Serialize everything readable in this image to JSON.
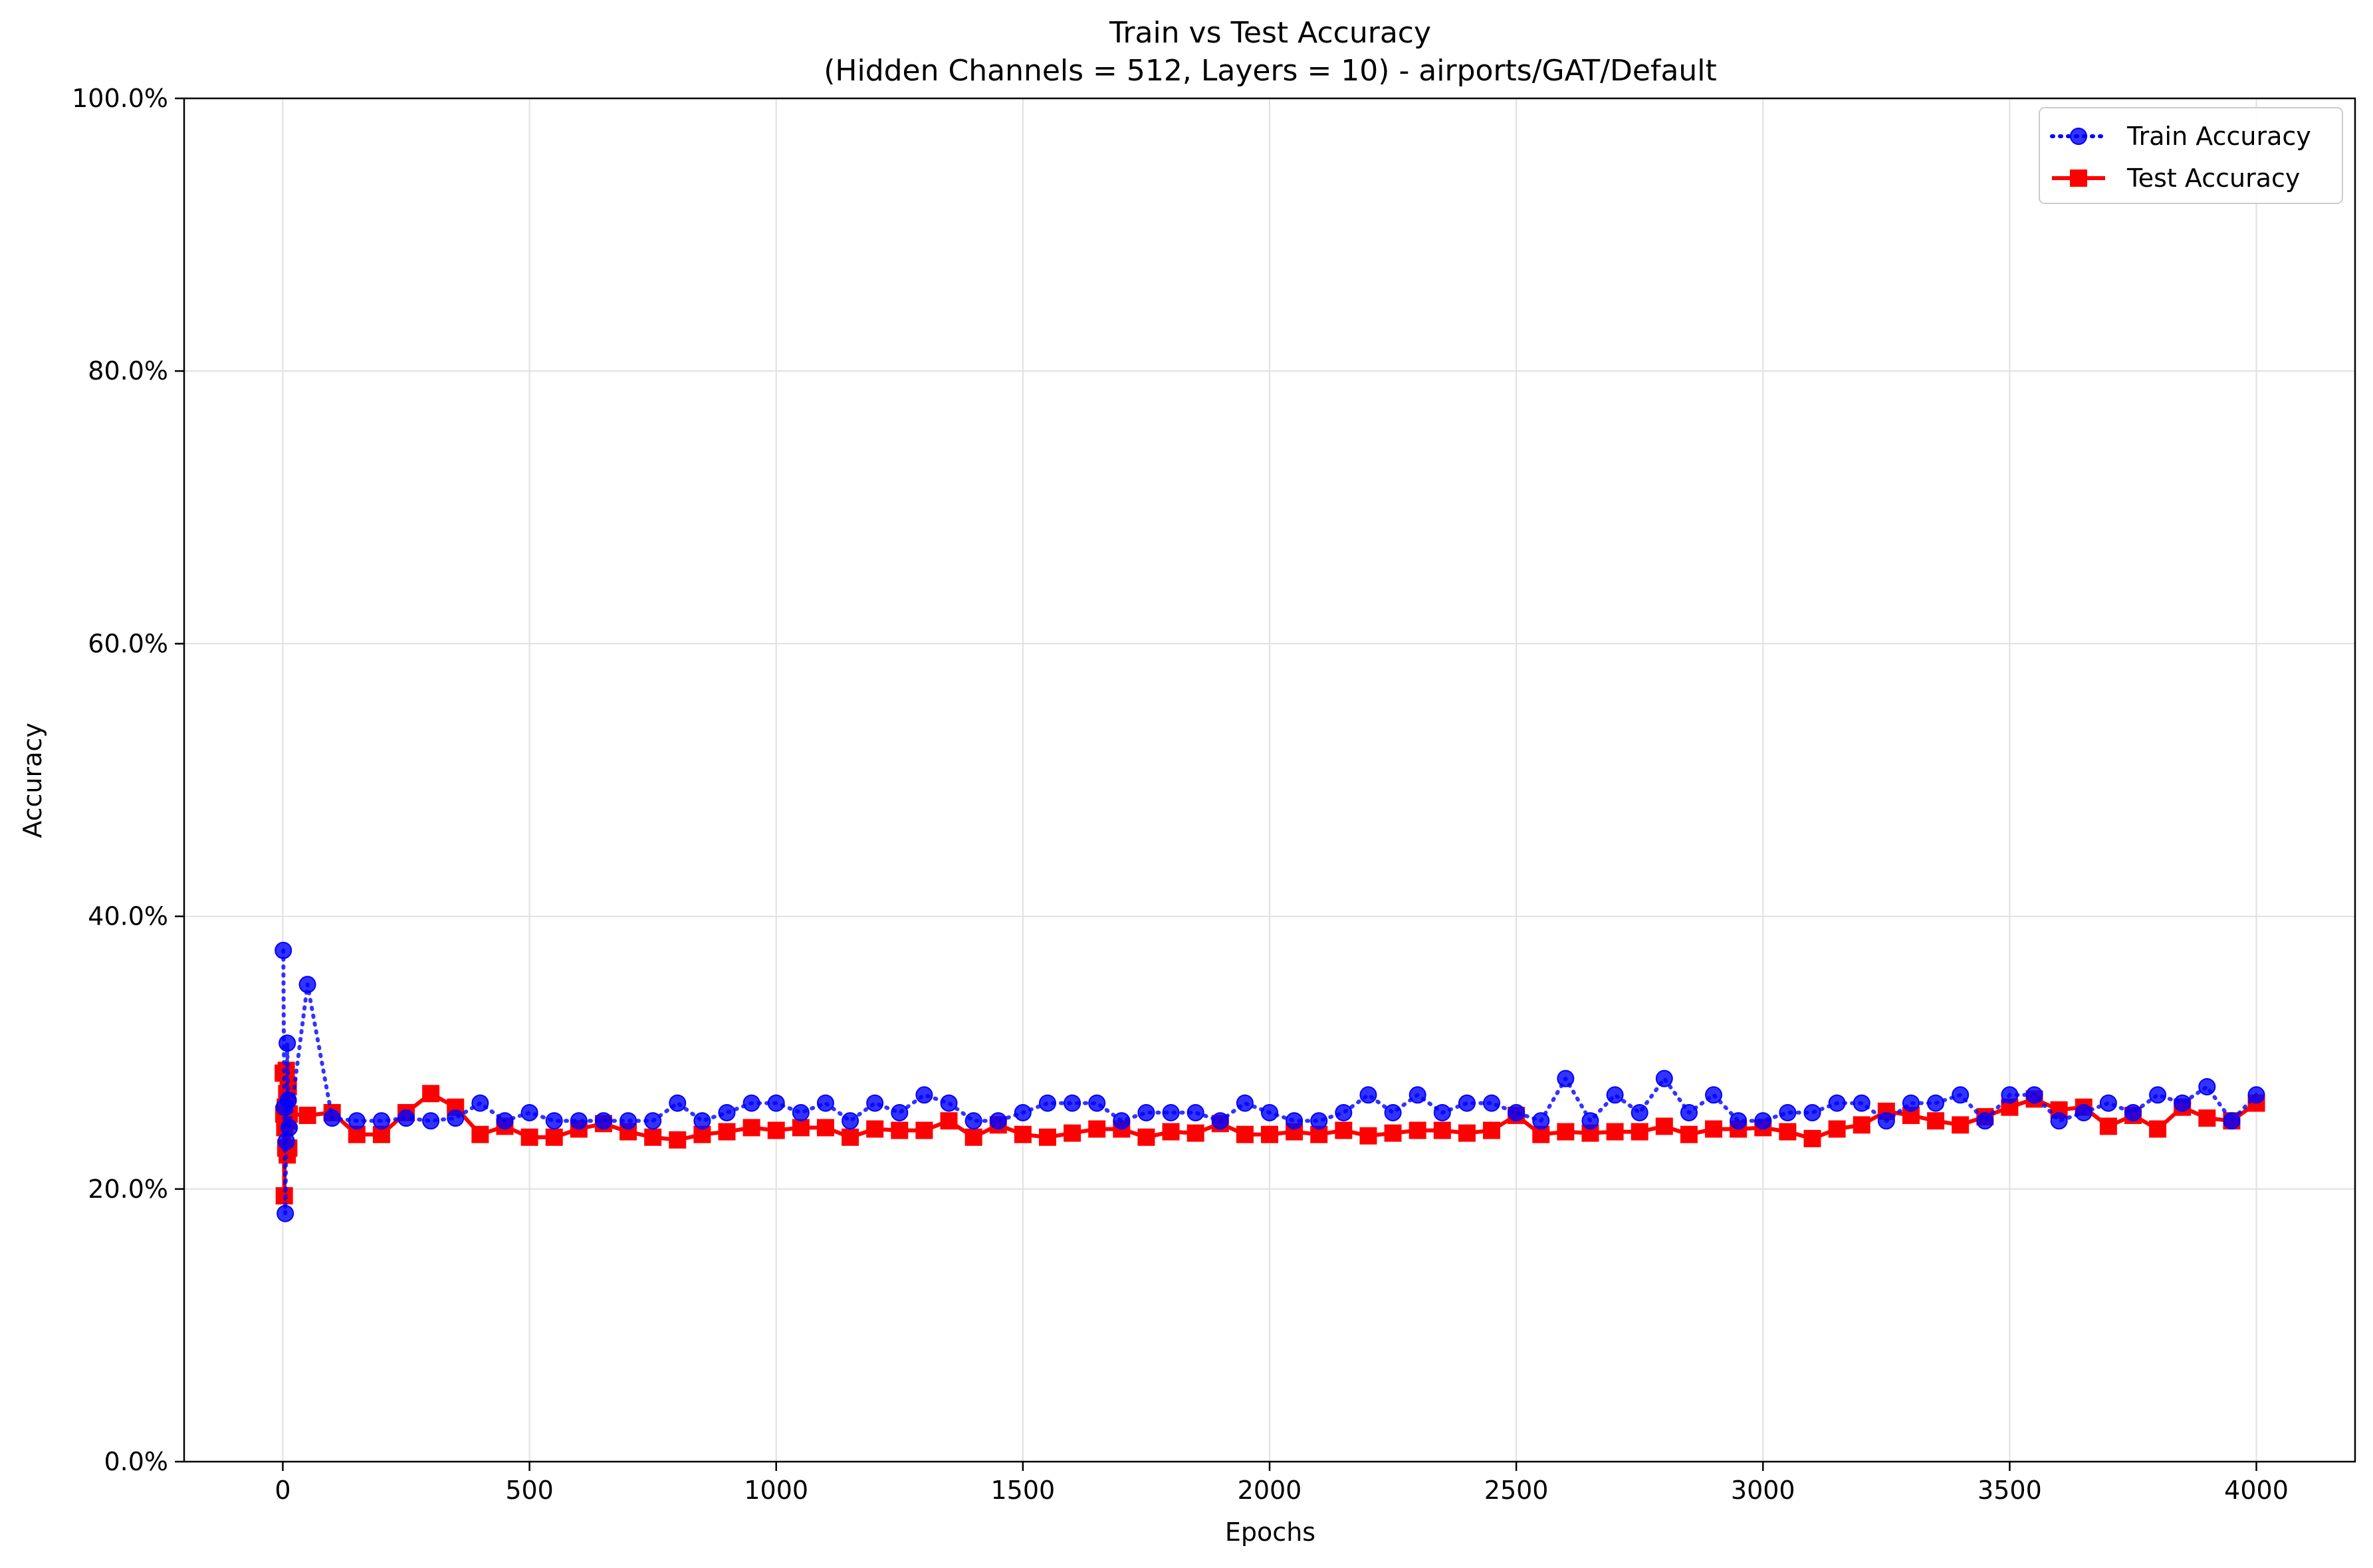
{
  "chart_data": {
    "type": "line",
    "title": "Train vs Test Accuracy",
    "subtitle": "(Hidden Channels = 512, Layers = 10) - airports/GAT/Default",
    "xlabel": "Epochs",
    "ylabel": "Accuracy",
    "xlim": [
      -200,
      4200
    ],
    "ylim": [
      0,
      100
    ],
    "x_ticks": [
      0,
      500,
      1000,
      1500,
      2000,
      2500,
      3000,
      3500,
      4000
    ],
    "y_ticks": [
      0,
      20,
      40,
      60,
      80,
      100
    ],
    "x_tick_labels": [
      "0",
      "500",
      "1000",
      "1500",
      "2000",
      "2500",
      "3000",
      "3500",
      "4000"
    ],
    "y_tick_labels": [
      "0.0%",
      "20.0%",
      "40.0%",
      "60.0%",
      "80.0%",
      "100.0%"
    ],
    "grid": true,
    "legend_position": "top-right",
    "series": [
      {
        "name": "Train Accuracy",
        "color": "#0000ff",
        "line_style": "dotted",
        "marker": "circle",
        "points": [
          [
            1,
            37.5
          ],
          [
            3,
            26.0
          ],
          [
            5,
            18.2
          ],
          [
            7,
            23.5
          ],
          [
            9,
            30.7
          ],
          [
            11,
            26.5
          ],
          [
            13,
            24.5
          ],
          [
            50,
            35.0
          ],
          [
            100,
            25.2
          ],
          [
            150,
            25.0
          ],
          [
            200,
            25.0
          ],
          [
            250,
            25.2
          ],
          [
            300,
            25.0
          ],
          [
            350,
            25.2
          ],
          [
            400,
            26.3
          ],
          [
            450,
            25.0
          ],
          [
            500,
            25.6
          ],
          [
            550,
            25.0
          ],
          [
            600,
            25.0
          ],
          [
            650,
            25.0
          ],
          [
            700,
            25.0
          ],
          [
            750,
            25.0
          ],
          [
            800,
            26.3
          ],
          [
            850,
            25.0
          ],
          [
            900,
            25.6
          ],
          [
            950,
            26.3
          ],
          [
            1000,
            26.3
          ],
          [
            1050,
            25.6
          ],
          [
            1100,
            26.3
          ],
          [
            1150,
            25.0
          ],
          [
            1200,
            26.3
          ],
          [
            1250,
            25.6
          ],
          [
            1300,
            26.9
          ],
          [
            1350,
            26.3
          ],
          [
            1400,
            25.0
          ],
          [
            1450,
            25.0
          ],
          [
            1500,
            25.6
          ],
          [
            1550,
            26.3
          ],
          [
            1600,
            26.3
          ],
          [
            1650,
            26.3
          ],
          [
            1700,
            25.0
          ],
          [
            1750,
            25.6
          ],
          [
            1800,
            25.6
          ],
          [
            1850,
            25.6
          ],
          [
            1900,
            25.0
          ],
          [
            1950,
            26.3
          ],
          [
            2000,
            25.6
          ],
          [
            2050,
            25.0
          ],
          [
            2100,
            25.0
          ],
          [
            2150,
            25.6
          ],
          [
            2200,
            26.9
          ],
          [
            2250,
            25.6
          ],
          [
            2300,
            26.9
          ],
          [
            2350,
            25.6
          ],
          [
            2400,
            26.3
          ],
          [
            2450,
            26.3
          ],
          [
            2500,
            25.6
          ],
          [
            2550,
            25.0
          ],
          [
            2600,
            28.1
          ],
          [
            2650,
            25.0
          ],
          [
            2700,
            26.9
          ],
          [
            2750,
            25.6
          ],
          [
            2800,
            28.1
          ],
          [
            2850,
            25.6
          ],
          [
            2900,
            26.9
          ],
          [
            2950,
            25.0
          ],
          [
            3000,
            25.0
          ],
          [
            3050,
            25.6
          ],
          [
            3100,
            25.6
          ],
          [
            3150,
            26.3
          ],
          [
            3200,
            26.3
          ],
          [
            3250,
            25.0
          ],
          [
            3300,
            26.3
          ],
          [
            3350,
            26.3
          ],
          [
            3400,
            26.9
          ],
          [
            3450,
            25.0
          ],
          [
            3500,
            26.9
          ],
          [
            3550,
            26.9
          ],
          [
            3600,
            25.0
          ],
          [
            3650,
            25.6
          ],
          [
            3700,
            26.3
          ],
          [
            3750,
            25.6
          ],
          [
            3800,
            26.9
          ],
          [
            3850,
            26.3
          ],
          [
            3900,
            27.5
          ],
          [
            3950,
            25.0
          ],
          [
            4000,
            26.9
          ]
        ]
      },
      {
        "name": "Test Accuracy",
        "color": "#ff0000",
        "line_style": "solid",
        "marker": "square",
        "points": [
          [
            1,
            28.5
          ],
          [
            2,
            25.5
          ],
          [
            3,
            19.5
          ],
          [
            4,
            24.5
          ],
          [
            5,
            26.0
          ],
          [
            6,
            23.0
          ],
          [
            7,
            28.7
          ],
          [
            8,
            27.0
          ],
          [
            9,
            22.5
          ],
          [
            10,
            25.0
          ],
          [
            11,
            27.5
          ],
          [
            12,
            23.0
          ],
          [
            13,
            25.5
          ],
          [
            50,
            25.4
          ],
          [
            100,
            25.6
          ],
          [
            150,
            24.0
          ],
          [
            200,
            24.0
          ],
          [
            250,
            25.6
          ],
          [
            300,
            27.0
          ],
          [
            350,
            26.0
          ],
          [
            400,
            24.0
          ],
          [
            450,
            24.6
          ],
          [
            500,
            23.8
          ],
          [
            550,
            23.8
          ],
          [
            600,
            24.4
          ],
          [
            650,
            24.8
          ],
          [
            700,
            24.2
          ],
          [
            750,
            23.8
          ],
          [
            800,
            23.6
          ],
          [
            850,
            24.0
          ],
          [
            900,
            24.2
          ],
          [
            950,
            24.5
          ],
          [
            1000,
            24.3
          ],
          [
            1050,
            24.5
          ],
          [
            1100,
            24.5
          ],
          [
            1150,
            23.8
          ],
          [
            1200,
            24.4
          ],
          [
            1250,
            24.3
          ],
          [
            1300,
            24.3
          ],
          [
            1350,
            25.0
          ],
          [
            1400,
            23.8
          ],
          [
            1450,
            24.7
          ],
          [
            1500,
            24.0
          ],
          [
            1550,
            23.8
          ],
          [
            1600,
            24.1
          ],
          [
            1650,
            24.4
          ],
          [
            1700,
            24.4
          ],
          [
            1750,
            23.8
          ],
          [
            1800,
            24.2
          ],
          [
            1850,
            24.1
          ],
          [
            1900,
            24.8
          ],
          [
            1950,
            24.0
          ],
          [
            2000,
            24.0
          ],
          [
            2050,
            24.2
          ],
          [
            2100,
            24.0
          ],
          [
            2150,
            24.3
          ],
          [
            2200,
            23.9
          ],
          [
            2250,
            24.1
          ],
          [
            2300,
            24.3
          ],
          [
            2350,
            24.3
          ],
          [
            2400,
            24.1
          ],
          [
            2450,
            24.3
          ],
          [
            2500,
            25.4
          ],
          [
            2550,
            24.0
          ],
          [
            2600,
            24.2
          ],
          [
            2650,
            24.1
          ],
          [
            2700,
            24.2
          ],
          [
            2750,
            24.2
          ],
          [
            2800,
            24.6
          ],
          [
            2850,
            24.0
          ],
          [
            2900,
            24.4
          ],
          [
            2950,
            24.4
          ],
          [
            3000,
            24.5
          ],
          [
            3050,
            24.2
          ],
          [
            3100,
            23.7
          ],
          [
            3150,
            24.4
          ],
          [
            3200,
            24.7
          ],
          [
            3250,
            25.7
          ],
          [
            3300,
            25.4
          ],
          [
            3350,
            25.0
          ],
          [
            3400,
            24.7
          ],
          [
            3450,
            25.3
          ],
          [
            3500,
            26.0
          ],
          [
            3550,
            26.6
          ],
          [
            3600,
            25.8
          ],
          [
            3650,
            26.0
          ],
          [
            3700,
            24.6
          ],
          [
            3750,
            25.4
          ],
          [
            3800,
            24.4
          ],
          [
            3850,
            26.0
          ],
          [
            3900,
            25.2
          ],
          [
            3950,
            25.0
          ],
          [
            4000,
            26.3
          ]
        ]
      }
    ]
  }
}
